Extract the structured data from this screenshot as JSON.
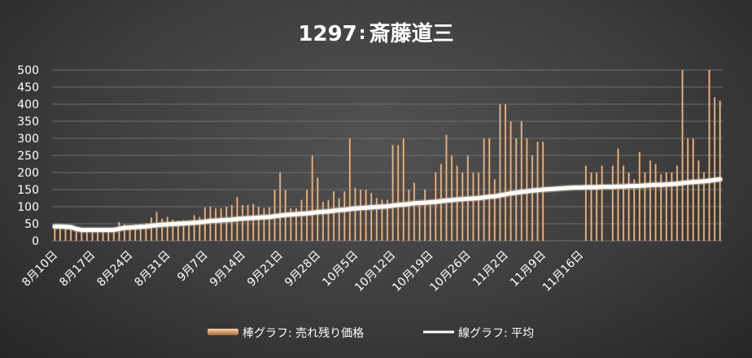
{
  "colors": {
    "bar": "#d9a06a",
    "bar_highlight": "#f6d7b4",
    "line": "#ffffff",
    "grid": "#6e6e6e",
    "background": "#3d3d3d"
  },
  "chart_data": {
    "type": "bar",
    "title": "1297: 斎藤道三",
    "title_number": "1297",
    "title_colon": ":",
    "title_name": "斎藤道三",
    "xlabel": "",
    "ylabel": "",
    "ylim": [
      0,
      500
    ],
    "y_ticks": [
      "0",
      "50",
      "100",
      "150",
      "200",
      "250",
      "300",
      "350",
      "400",
      "450",
      "500"
    ],
    "x_start_date": "8/10",
    "x_end_date": "11/22",
    "x_tick_labels": [
      "8月10日",
      "8月17日",
      "8月24日",
      "8月31日",
      "9月7日",
      "9月14日",
      "9月21日",
      "9月28日",
      "10月5日",
      "10月12日",
      "10月19日",
      "10月26日",
      "11月2日",
      "11月9日",
      "11月16日"
    ],
    "grid": true,
    "legend_position": "bottom",
    "series": [
      {
        "name": "棒グラフ: 売れ残り価格",
        "type": "bar",
        "values": [
          38,
          40,
          38,
          35,
          30,
          30,
          30,
          30,
          30,
          30,
          30,
          35,
          55,
          48,
          45,
          48,
          50,
          52,
          68,
          85,
          65,
          70,
          62,
          58,
          60,
          58,
          75,
          70,
          98,
          100,
          95,
          95,
          100,
          105,
          128,
          105,
          105,
          108,
          100,
          95,
          98,
          150,
          200,
          150,
          95,
          95,
          120,
          150,
          250,
          185,
          115,
          120,
          145,
          125,
          145,
          300,
          155,
          150,
          150,
          140,
          125,
          120,
          120,
          280,
          280,
          300,
          150,
          170,
          115,
          150,
          120,
          200,
          225,
          310,
          250,
          220,
          200,
          250,
          200,
          200,
          300,
          300,
          180,
          400,
          400,
          350,
          300,
          350,
          300,
          250,
          290,
          290,
          null,
          null,
          null,
          null,
          null,
          null,
          null,
          220,
          200,
          200,
          220,
          null,
          220,
          270,
          220,
          200,
          180,
          260,
          200,
          235,
          225,
          195,
          200,
          200,
          220,
          500,
          300,
          300,
          235,
          200,
          500,
          420,
          410
        ]
      },
      {
        "name": "線グラフ: 平均",
        "type": "line",
        "values": [
          42,
          42,
          41,
          40,
          35,
          32,
          32,
          32,
          32,
          32,
          32,
          32,
          35,
          38,
          39,
          40,
          41,
          42,
          44,
          46,
          47,
          48,
          49,
          50,
          51,
          52,
          53,
          54,
          56,
          58,
          59,
          60,
          61,
          62,
          64,
          65,
          66,
          67,
          68,
          69,
          70,
          72,
          74,
          76,
          77,
          78,
          79,
          80,
          82,
          84,
          85,
          86,
          88,
          90,
          91,
          93,
          95,
          96,
          97,
          98,
          99,
          100,
          101,
          103,
          105,
          106,
          108,
          110,
          111,
          112,
          113,
          114,
          116,
          118,
          119,
          121,
          122,
          123,
          124,
          125,
          127,
          129,
          130,
          133,
          136,
          139,
          141,
          143,
          145,
          147,
          148,
          150,
          151,
          152,
          153,
          154,
          155,
          156,
          156,
          157,
          157,
          157,
          158,
          158,
          158,
          159,
          159,
          160,
          160,
          161,
          162,
          163,
          164,
          164,
          165,
          166,
          167,
          169,
          171,
          172,
          173,
          174,
          176,
          178,
          180
        ]
      }
    ]
  }
}
